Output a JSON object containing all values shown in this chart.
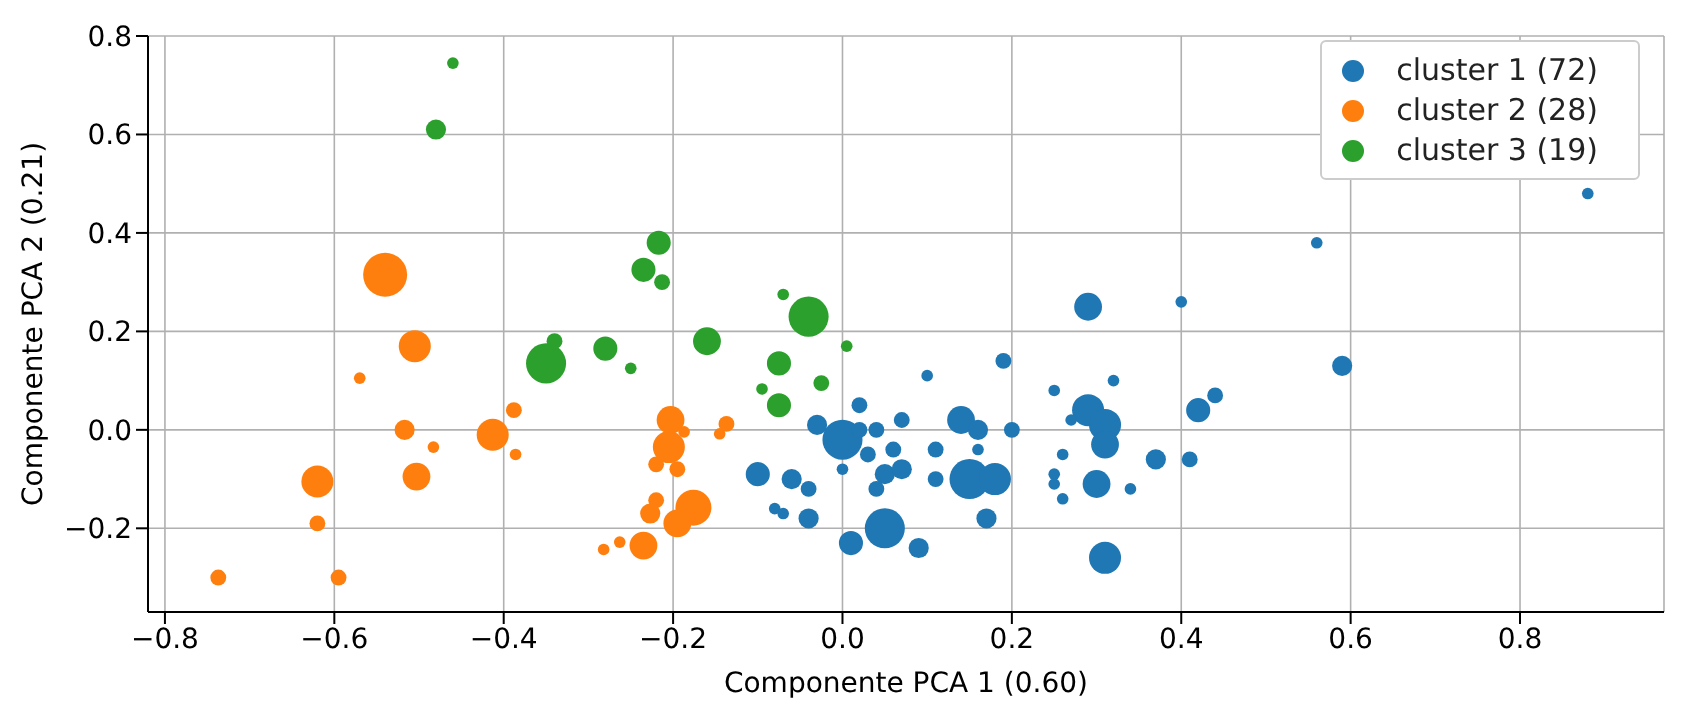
{
  "chart_data": {
    "type": "bubble",
    "xlabel": "Componente PCA 1 (0.60)",
    "ylabel": "Componente PCA 2 (0.21)",
    "xlim": [
      -0.82,
      0.97
    ],
    "ylim": [
      -0.37,
      0.8
    ],
    "xticks": [
      {
        "value": -0.8,
        "label": "−0.8"
      },
      {
        "value": -0.6,
        "label": "−0.6"
      },
      {
        "value": -0.4,
        "label": "−0.4"
      },
      {
        "value": -0.2,
        "label": "−0.2"
      },
      {
        "value": 0,
        "label": "0.0"
      },
      {
        "value": 0.2,
        "label": "0.2"
      },
      {
        "value": 0.4,
        "label": "0.4"
      },
      {
        "value": 0.6,
        "label": "0.6"
      },
      {
        "value": 0.8,
        "label": "0.8"
      }
    ],
    "yticks": [
      {
        "value": -0.2,
        "label": "−0.2"
      },
      {
        "value": 0,
        "label": "0.0"
      },
      {
        "value": 0.2,
        "label": "0.2"
      },
      {
        "value": 0.4,
        "label": "0.4"
      },
      {
        "value": 0.6,
        "label": "0.6"
      },
      {
        "value": 0.8,
        "label": "0.8"
      }
    ],
    "grid": true,
    "legend": "top right",
    "series": [
      {
        "name": "cluster 1 (72)",
        "color": "#1f77b4",
        "x": [
          0.0,
          -0.03,
          0.02,
          0.02,
          0.04,
          0.07,
          0.03,
          0.0,
          0.06,
          0.11,
          0.14,
          0.16,
          0.16,
          0.2,
          0.19,
          0.1,
          0.05,
          0.07,
          0.04,
          0.11,
          0.15,
          0.18,
          0.17,
          0.05,
          0.01,
          0.09,
          -0.06,
          -0.04,
          -0.1,
          -0.08,
          -0.07,
          -0.04,
          0.25,
          0.29,
          0.31,
          0.31,
          0.26,
          0.25,
          0.25,
          0.26,
          0.3,
          0.31,
          0.27,
          0.32,
          0.29,
          0.4,
          0.56,
          0.88,
          0.59,
          0.44,
          0.42,
          0.37,
          0.41,
          0.34
        ],
        "values": [
          -0.02,
          0.01,
          0.05,
          0.0,
          0.0,
          0.02,
          -0.05,
          -0.08,
          -0.04,
          -0.04,
          0.02,
          0.0,
          -0.04,
          0.0,
          0.14,
          0.11,
          -0.09,
          -0.08,
          -0.12,
          -0.1,
          -0.1,
          -0.1,
          -0.18,
          -0.2,
          -0.23,
          -0.24,
          -0.1,
          -0.12,
          -0.09,
          -0.16,
          -0.17,
          -0.18,
          0.08,
          0.04,
          0.01,
          -0.03,
          -0.05,
          -0.09,
          -0.11,
          -0.14,
          -0.11,
          -0.26,
          0.02,
          0.1,
          0.25,
          0.26,
          0.38,
          0.48,
          0.13,
          0.07,
          0.04,
          -0.06,
          -0.06,
          -0.12
        ],
        "sizes": [
          0.83,
          0.21,
          0.13,
          0.13,
          0.13,
          0.13,
          0.13,
          0.07,
          0.13,
          0.13,
          0.4,
          0.21,
          0.07,
          0.13,
          0.13,
          0.07,
          0.21,
          0.21,
          0.13,
          0.13,
          0.83,
          0.53,
          0.21,
          0.83,
          0.3,
          0.21,
          0.21,
          0.13,
          0.3,
          0.07,
          0.07,
          0.21,
          0.07,
          0.53,
          0.53,
          0.4,
          0.07,
          0.07,
          0.07,
          0.07,
          0.4,
          0.53,
          0.07,
          0.07,
          0.4,
          0.07,
          0.07,
          0.07,
          0.21,
          0.13,
          0.3,
          0.21,
          0.13,
          0.07
        ]
      },
      {
        "name": "cluster 2 (28)",
        "color": "#ff7f0e",
        "x": [
          -0.54,
          -0.505,
          -0.57,
          -0.517,
          -0.483,
          -0.503,
          -0.62,
          -0.62,
          -0.737,
          -0.595,
          -0.413,
          -0.388,
          -0.386,
          -0.282,
          -0.263,
          -0.235,
          -0.203,
          -0.205,
          -0.22,
          -0.195,
          -0.187,
          -0.22,
          -0.227,
          -0.176,
          -0.195,
          -0.137,
          -0.145
        ],
        "values": [
          0.315,
          0.17,
          0.105,
          0.0,
          -0.035,
          -0.095,
          -0.105,
          -0.19,
          -0.3,
          -0.3,
          -0.01,
          0.04,
          -0.05,
          -0.243,
          -0.228,
          -0.235,
          0.02,
          -0.035,
          -0.07,
          -0.08,
          -0.004,
          -0.143,
          -0.17,
          -0.158,
          -0.19,
          0.012,
          -0.008
        ],
        "sizes": [
          1,
          0.53,
          0.07,
          0.21,
          0.07,
          0.4,
          0.53,
          0.13,
          0.13,
          0.13,
          0.53,
          0.13,
          0.07,
          0.07,
          0.07,
          0.4,
          0.4,
          0.53,
          0.13,
          0.13,
          0.07,
          0.13,
          0.21,
          0.67,
          0.4,
          0.13,
          0.07
        ]
      },
      {
        "name": "cluster 3 (19)",
        "color": "#2ca02c",
        "x": [
          -0.46,
          -0.48,
          -0.35,
          -0.34,
          -0.28,
          -0.25,
          -0.235,
          -0.217,
          -0.213,
          -0.16,
          -0.07,
          -0.04,
          0.005,
          -0.075,
          -0.025,
          -0.095,
          -0.075
        ],
        "values": [
          0.745,
          0.61,
          0.135,
          0.18,
          0.165,
          0.125,
          0.325,
          0.38,
          0.3,
          0.18,
          0.275,
          0.23,
          0.17,
          0.135,
          0.095,
          0.083,
          0.05
        ],
        "sizes": [
          0.07,
          0.21,
          0.83,
          0.13,
          0.3,
          0.07,
          0.3,
          0.3,
          0.13,
          0.4,
          0.07,
          0.83,
          0.07,
          0.3,
          0.13,
          0.07,
          0.3
        ]
      }
    ]
  }
}
